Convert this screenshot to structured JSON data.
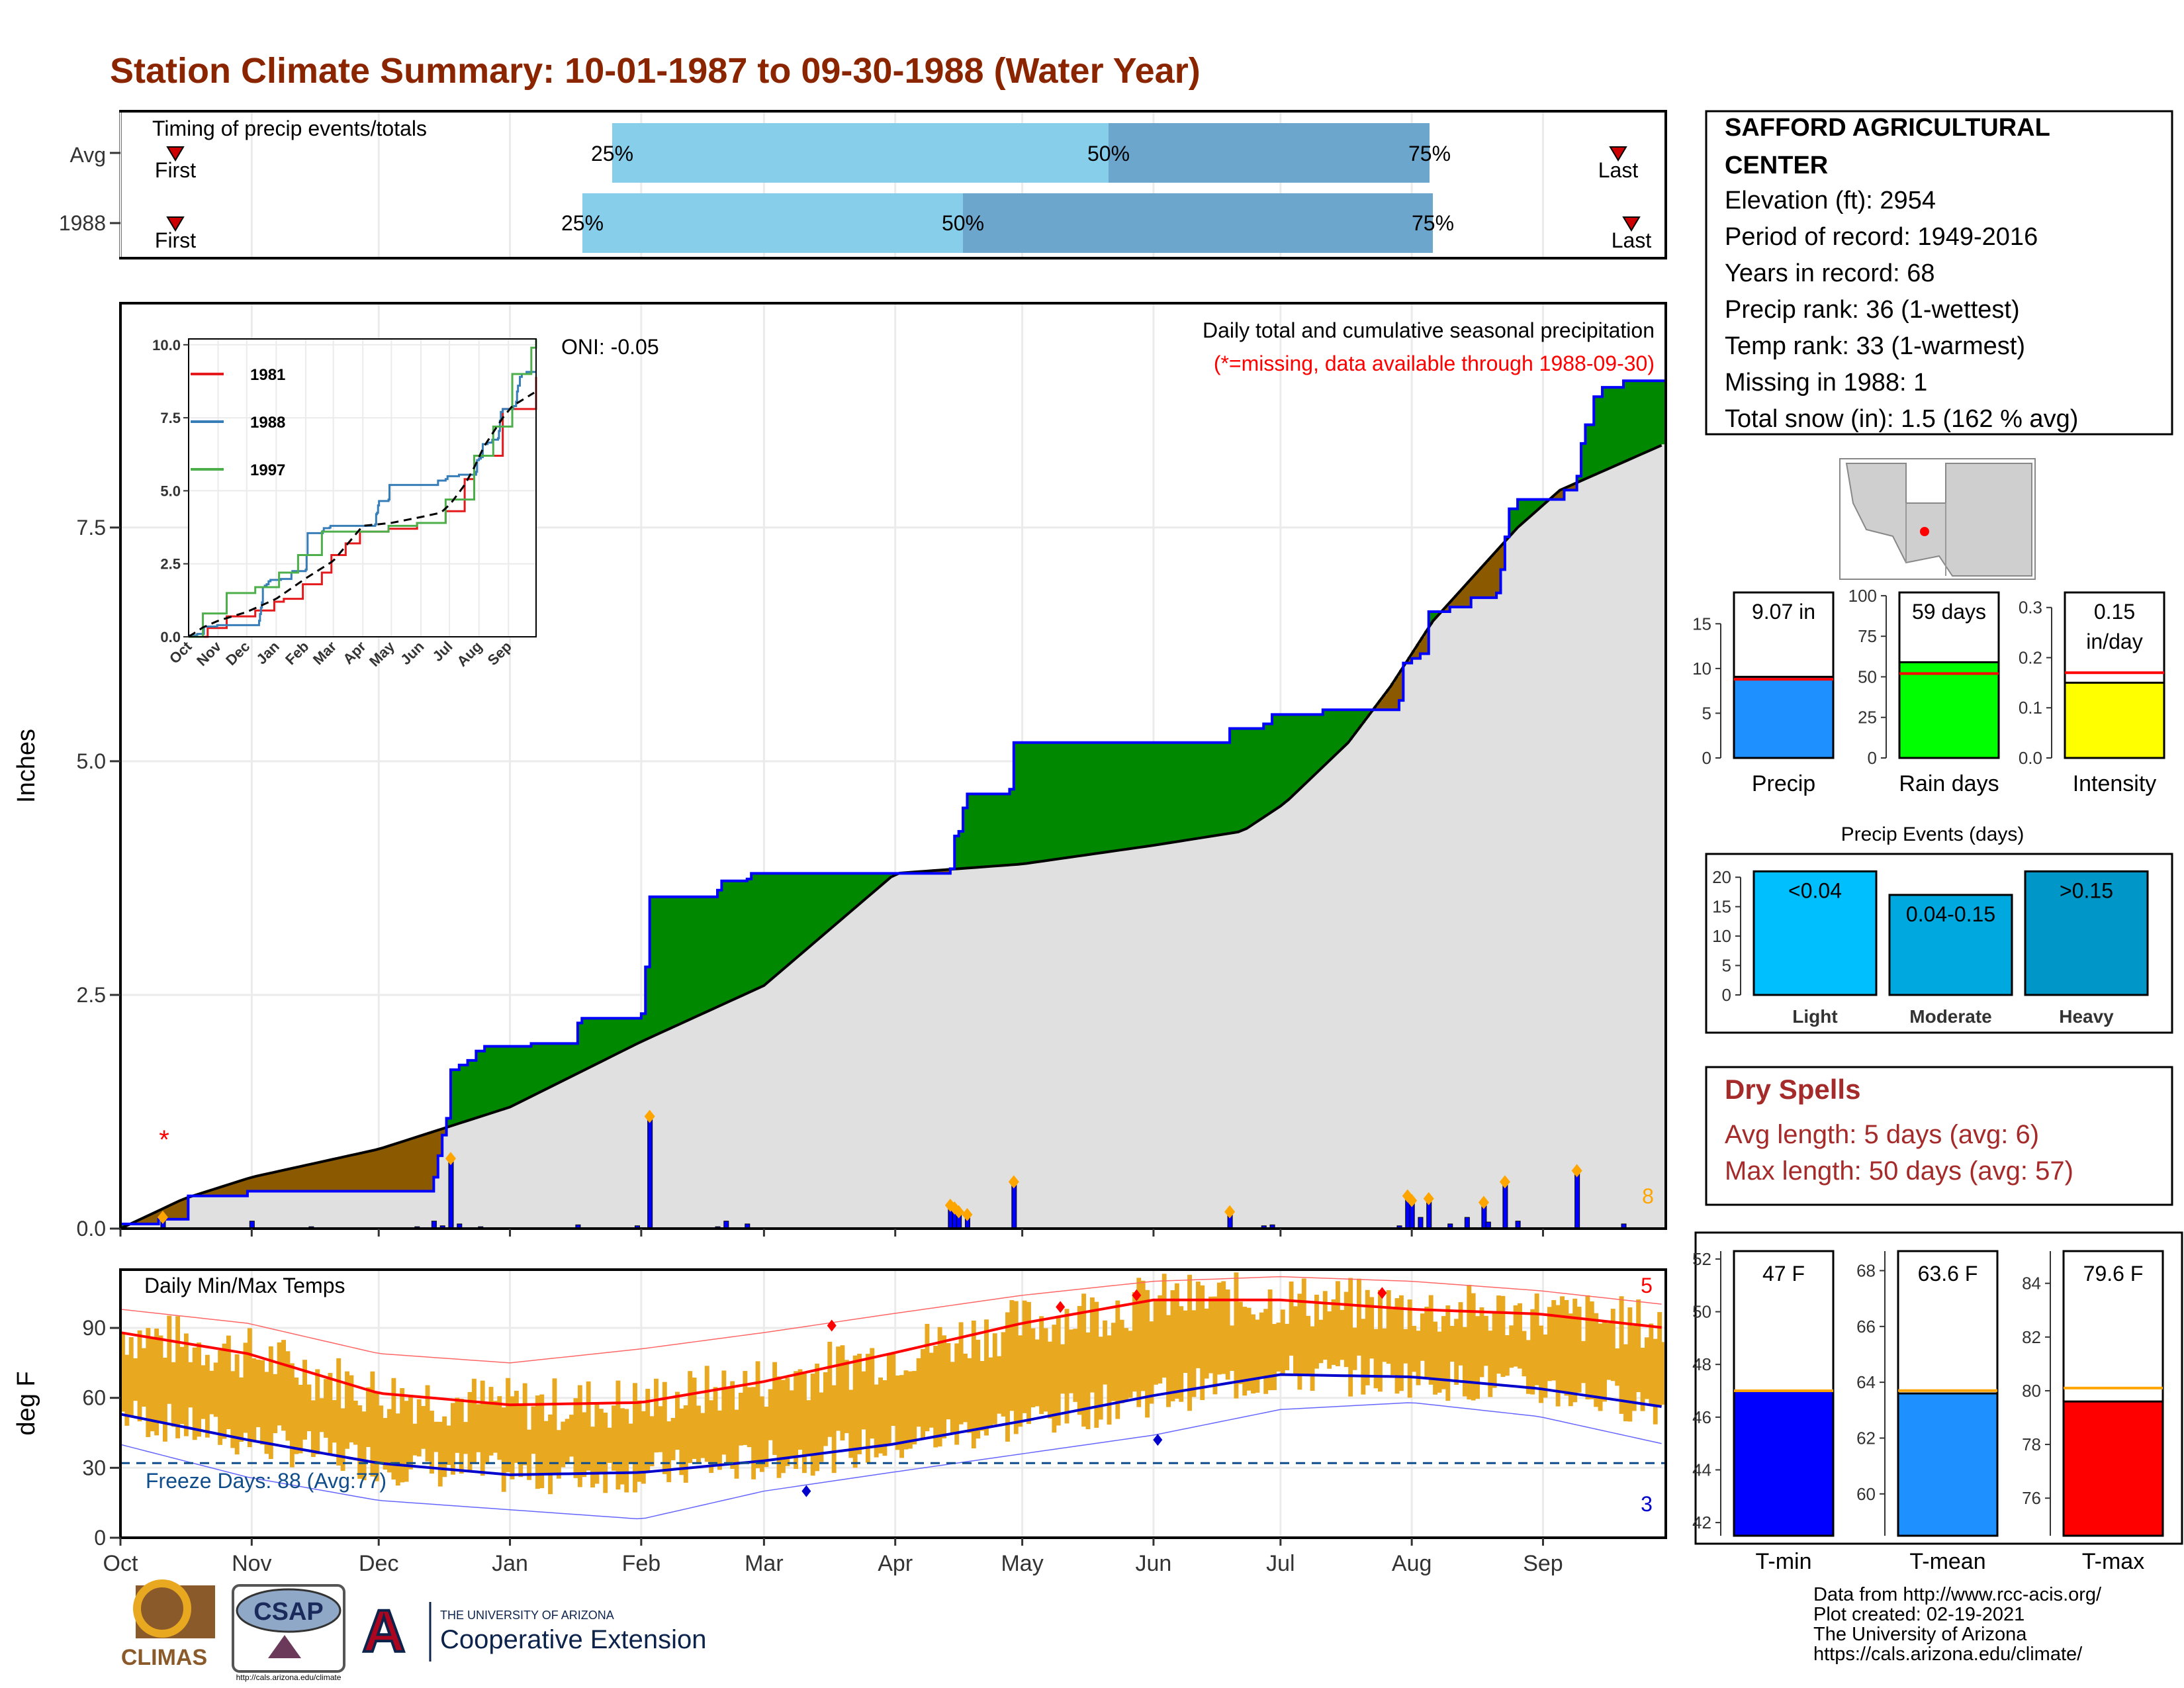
{
  "title": "Station Climate Summary: 10-01-1987 to 09-30-1988 (Water Year)",
  "colors": {
    "title": "#8B2500",
    "cumulative_obs": "#0000ff",
    "above_avg_fill": "#008800",
    "below_avg_fill": "#8B5A00",
    "climo_fill": "#e0e0e0",
    "daily_bars": "#0000ff",
    "temp_bars": "#E8A820",
    "tmax_line": "#ff0000",
    "tmin_line": "#0000cc",
    "dry_spells": "#A52A2A"
  },
  "timing": {
    "label": "Timing of precip events/totals",
    "rows": [
      "Avg",
      "1988"
    ],
    "first_label": "First",
    "last_label": "Last",
    "pct_labels": [
      "25%",
      "50%",
      "75%"
    ]
  },
  "months": [
    "Oct",
    "Nov",
    "Dec",
    "Jan",
    "Feb",
    "Mar",
    "Apr",
    "May",
    "Jun",
    "Jul",
    "Aug",
    "Sep"
  ],
  "precip_panel": {
    "ylabel": "Inches",
    "yticks": [
      "0.0",
      "2.5",
      "5.0",
      "7.5"
    ],
    "oni": "ONI: -0.05",
    "header": "Daily total and cumulative seasonal precipitation",
    "subheader": "(*=missing, data available through 1988-09-30)",
    "corner_count": "8",
    "missing_marker": "*"
  },
  "inset": {
    "yticks": [
      "0.0",
      "2.5",
      "5.0",
      "7.5",
      "10.0"
    ],
    "months": [
      "Oct",
      "Nov",
      "Dec",
      "Jan",
      "Feb",
      "Mar",
      "Apr",
      "May",
      "Jun",
      "Jul",
      "Aug",
      "Sep"
    ],
    "legend": [
      {
        "name": "1981",
        "color": "#e41a1c"
      },
      {
        "name": "1988",
        "color": "#377eb8"
      },
      {
        "name": "1997",
        "color": "#4daf4a"
      }
    ]
  },
  "temp_panel": {
    "ylabel": "deg F",
    "label": "Daily Min/Max Temps",
    "yticks": [
      "0",
      "30",
      "60",
      "90"
    ],
    "freeze": "Freeze Days: 88 (Avg:77)",
    "count_max": "5",
    "count_min": "3"
  },
  "station": {
    "name_line1": "SAFFORD AGRICULTURAL",
    "name_line2": "CENTER",
    "lines": [
      "Elevation (ft): 2954",
      "Period of record: 1949-2016",
      "Years in record: 68",
      "Precip rank: 36 (1-wettest)",
      "Temp rank: 33 (1-warmest)",
      "Missing in 1988: 1",
      "Total snow (in): 1.5 (162 % avg)"
    ]
  },
  "summary_bars": [
    {
      "label": "Precip",
      "value_text": "9.07 in",
      "yticks": [
        "0",
        "5",
        "10",
        "15"
      ],
      "color": "#1E90FF"
    },
    {
      "label": "Rain days",
      "value_text": "59 days",
      "yticks": [
        "0",
        "25",
        "50",
        "75",
        "100"
      ],
      "color": "#00FF00"
    },
    {
      "label": "Intensity",
      "value_text": "0.15",
      "value_text2": "in/day",
      "yticks": [
        "0.0",
        "0.1",
        "0.2",
        "0.3"
      ],
      "color": "#FFFF00"
    }
  ],
  "events": {
    "title": "Precip Events (days)",
    "yticks": [
      "0",
      "5",
      "10",
      "15",
      "20"
    ],
    "bars": [
      {
        "label": "Light",
        "range": "<0.04",
        "value": 21,
        "color": "#00BFFF"
      },
      {
        "label": "Moderate",
        "range": "0.04-0.15",
        "value": 17,
        "color": "#00A8E0"
      },
      {
        "label": "Heavy",
        "range": ">0.15",
        "value": 21,
        "color": "#0096C8"
      }
    ]
  },
  "dry_spells": {
    "title": "Dry Spells",
    "avg": "Avg length: 5 days (avg: 6)",
    "max": "Max length: 50 days (avg: 57)"
  },
  "temp_bars": [
    {
      "label": "T-min",
      "value_text": "47 F",
      "yticks": [
        "42",
        "44",
        "46",
        "48",
        "50",
        "52"
      ],
      "color": "#0000FF"
    },
    {
      "label": "T-mean",
      "value_text": "63.6 F",
      "yticks": [
        "60",
        "62",
        "64",
        "66",
        "68"
      ],
      "color": "#1E90FF"
    },
    {
      "label": "T-max",
      "value_text": "79.6 F",
      "yticks": [
        "76",
        "78",
        "80",
        "82",
        "84"
      ],
      "color": "#FF0000"
    }
  ],
  "credits": [
    "Data from http://www.rcc-acis.org/",
    "Plot created: 02-19-2021",
    "The University of Arizona",
    "https://cals.arizona.edu/climate/"
  ],
  "logos": {
    "climas": "CLIMAS",
    "csap": "CSAP",
    "csap_url": "http://cals.arizona.edu/climate",
    "ua_small": "THE UNIVERSITY OF ARIZONA",
    "ua_big": "Cooperative Extension"
  },
  "chart_data": {
    "type": "area",
    "title": "Daily total and cumulative seasonal precipitation",
    "xlabel": "",
    "ylabel": "Inches",
    "ylim": [
      0,
      9.9
    ],
    "x_domain_days": [
      0,
      365
    ],
    "cumulative_1988": [
      [
        0,
        0.05
      ],
      [
        8,
        0.05
      ],
      [
        9,
        0.1
      ],
      [
        15,
        0.1
      ],
      [
        16,
        0.35
      ],
      [
        29,
        0.35
      ],
      [
        30,
        0.4
      ],
      [
        74,
        0.55
      ],
      [
        75,
        0.78
      ],
      [
        76,
        1.0
      ],
      [
        77,
        1.18
      ],
      [
        78,
        1.7
      ],
      [
        80,
        1.75
      ],
      [
        82,
        1.8
      ],
      [
        84,
        1.9
      ],
      [
        86,
        1.95
      ],
      [
        97,
        1.98
      ],
      [
        108,
        2.2
      ],
      [
        109,
        2.25
      ],
      [
        123,
        2.3
      ],
      [
        124,
        2.8
      ],
      [
        125,
        3.55
      ],
      [
        141,
        3.62
      ],
      [
        142,
        3.72
      ],
      [
        148,
        3.74
      ],
      [
        149,
        3.8
      ],
      [
        196,
        3.85
      ],
      [
        197,
        4.2
      ],
      [
        198,
        4.25
      ],
      [
        199,
        4.5
      ],
      [
        200,
        4.65
      ],
      [
        210,
        4.7
      ],
      [
        211,
        5.2
      ],
      [
        262,
        5.35
      ],
      [
        270,
        5.4
      ],
      [
        272,
        5.5
      ],
      [
        284,
        5.55
      ],
      [
        302,
        5.65
      ],
      [
        303,
        6.05
      ],
      [
        305,
        6.1
      ],
      [
        307,
        6.15
      ],
      [
        309,
        6.6
      ],
      [
        314,
        6.65
      ],
      [
        319,
        6.75
      ],
      [
        325,
        6.8
      ],
      [
        326,
        7.05
      ],
      [
        327,
        7.4
      ],
      [
        328,
        7.7
      ],
      [
        330,
        7.8
      ],
      [
        341,
        7.9
      ],
      [
        344,
        8.05
      ],
      [
        345,
        8.4
      ],
      [
        346,
        8.6
      ],
      [
        348,
        8.9
      ],
      [
        350,
        9.0
      ],
      [
        355,
        9.07
      ],
      [
        365,
        9.07
      ]
    ],
    "cumulative_avg": [
      [
        0,
        0
      ],
      [
        15,
        0.32
      ],
      [
        31,
        0.55
      ],
      [
        61,
        0.85
      ],
      [
        92,
        1.3
      ],
      [
        123,
        2.0
      ],
      [
        152,
        2.6
      ],
      [
        183,
        3.8
      ],
      [
        213,
        3.9
      ],
      [
        244,
        4.1
      ],
      [
        265,
        4.25
      ],
      [
        275,
        4.55
      ],
      [
        290,
        5.2
      ],
      [
        300,
        5.8
      ],
      [
        310,
        6.5
      ],
      [
        320,
        7.0
      ],
      [
        330,
        7.5
      ],
      [
        340,
        7.9
      ],
      [
        350,
        8.1
      ],
      [
        365,
        8.4
      ]
    ],
    "daily_precip": [
      [
        10,
        0.12
      ],
      [
        31,
        0.08
      ],
      [
        45,
        0.02
      ],
      [
        70,
        0.02
      ],
      [
        74,
        0.08
      ],
      [
        76,
        0.03
      ],
      [
        78,
        0.75
      ],
      [
        80,
        0.05
      ],
      [
        85,
        0.02
      ],
      [
        108,
        0.04
      ],
      [
        122,
        0.03
      ],
      [
        125,
        1.2
      ],
      [
        141,
        0.02
      ],
      [
        143,
        0.08
      ],
      [
        148,
        0.05
      ],
      [
        196,
        0.25
      ],
      [
        197,
        0.22
      ],
      [
        198,
        0.18
      ],
      [
        200,
        0.15
      ],
      [
        211,
        0.5
      ],
      [
        262,
        0.18
      ],
      [
        270,
        0.03
      ],
      [
        272,
        0.04
      ],
      [
        302,
        0.03
      ],
      [
        304,
        0.35
      ],
      [
        305,
        0.3
      ],
      [
        307,
        0.12
      ],
      [
        309,
        0.32
      ],
      [
        314,
        0.05
      ],
      [
        318,
        0.12
      ],
      [
        322,
        0.28
      ],
      [
        323,
        0.07
      ],
      [
        327,
        0.5
      ],
      [
        330,
        0.08
      ],
      [
        344,
        0.62
      ],
      [
        355,
        0.05
      ]
    ],
    "missing_days": [
      10
    ],
    "temp_series": {
      "ylim": [
        0,
        115
      ],
      "avg_max": [
        [
          0,
          88
        ],
        [
          30,
          79
        ],
        [
          61,
          62
        ],
        [
          92,
          57
        ],
        [
          123,
          58
        ],
        [
          152,
          67
        ],
        [
          182,
          79
        ],
        [
          213,
          92
        ],
        [
          244,
          102
        ],
        [
          274,
          102
        ],
        [
          305,
          98
        ],
        [
          335,
          96
        ],
        [
          365,
          90
        ]
      ],
      "avg_min": [
        [
          0,
          53
        ],
        [
          30,
          42
        ],
        [
          61,
          32
        ],
        [
          92,
          27
        ],
        [
          123,
          28
        ],
        [
          152,
          33
        ],
        [
          182,
          40
        ],
        [
          213,
          50
        ],
        [
          244,
          61
        ],
        [
          274,
          70
        ],
        [
          305,
          69
        ],
        [
          335,
          64
        ],
        [
          365,
          56
        ]
      ],
      "record_high": [
        [
          0,
          98
        ],
        [
          30,
          92
        ],
        [
          61,
          79
        ],
        [
          92,
          75
        ],
        [
          123,
          81
        ],
        [
          152,
          88
        ],
        [
          182,
          96
        ],
        [
          213,
          104
        ],
        [
          244,
          110
        ],
        [
          274,
          112
        ],
        [
          305,
          110
        ],
        [
          335,
          106
        ],
        [
          365,
          100
        ]
      ],
      "record_low": [
        [
          0,
          40
        ],
        [
          30,
          26
        ],
        [
          61,
          16
        ],
        [
          92,
          12
        ],
        [
          123,
          8
        ],
        [
          152,
          20
        ],
        [
          182,
          28
        ],
        [
          213,
          36
        ],
        [
          244,
          44
        ],
        [
          274,
          55
        ],
        [
          305,
          58
        ],
        [
          335,
          52
        ],
        [
          365,
          40
        ]
      ]
    },
    "events": {
      "categories": [
        "Light",
        "Moderate",
        "Heavy"
      ],
      "values": [
        21,
        17,
        21
      ]
    },
    "summary": {
      "precip_in": 9.07,
      "rain_days": 59,
      "intensity": 0.15,
      "tmin": 47,
      "tmean": 63.6,
      "tmax": 79.6
    }
  }
}
